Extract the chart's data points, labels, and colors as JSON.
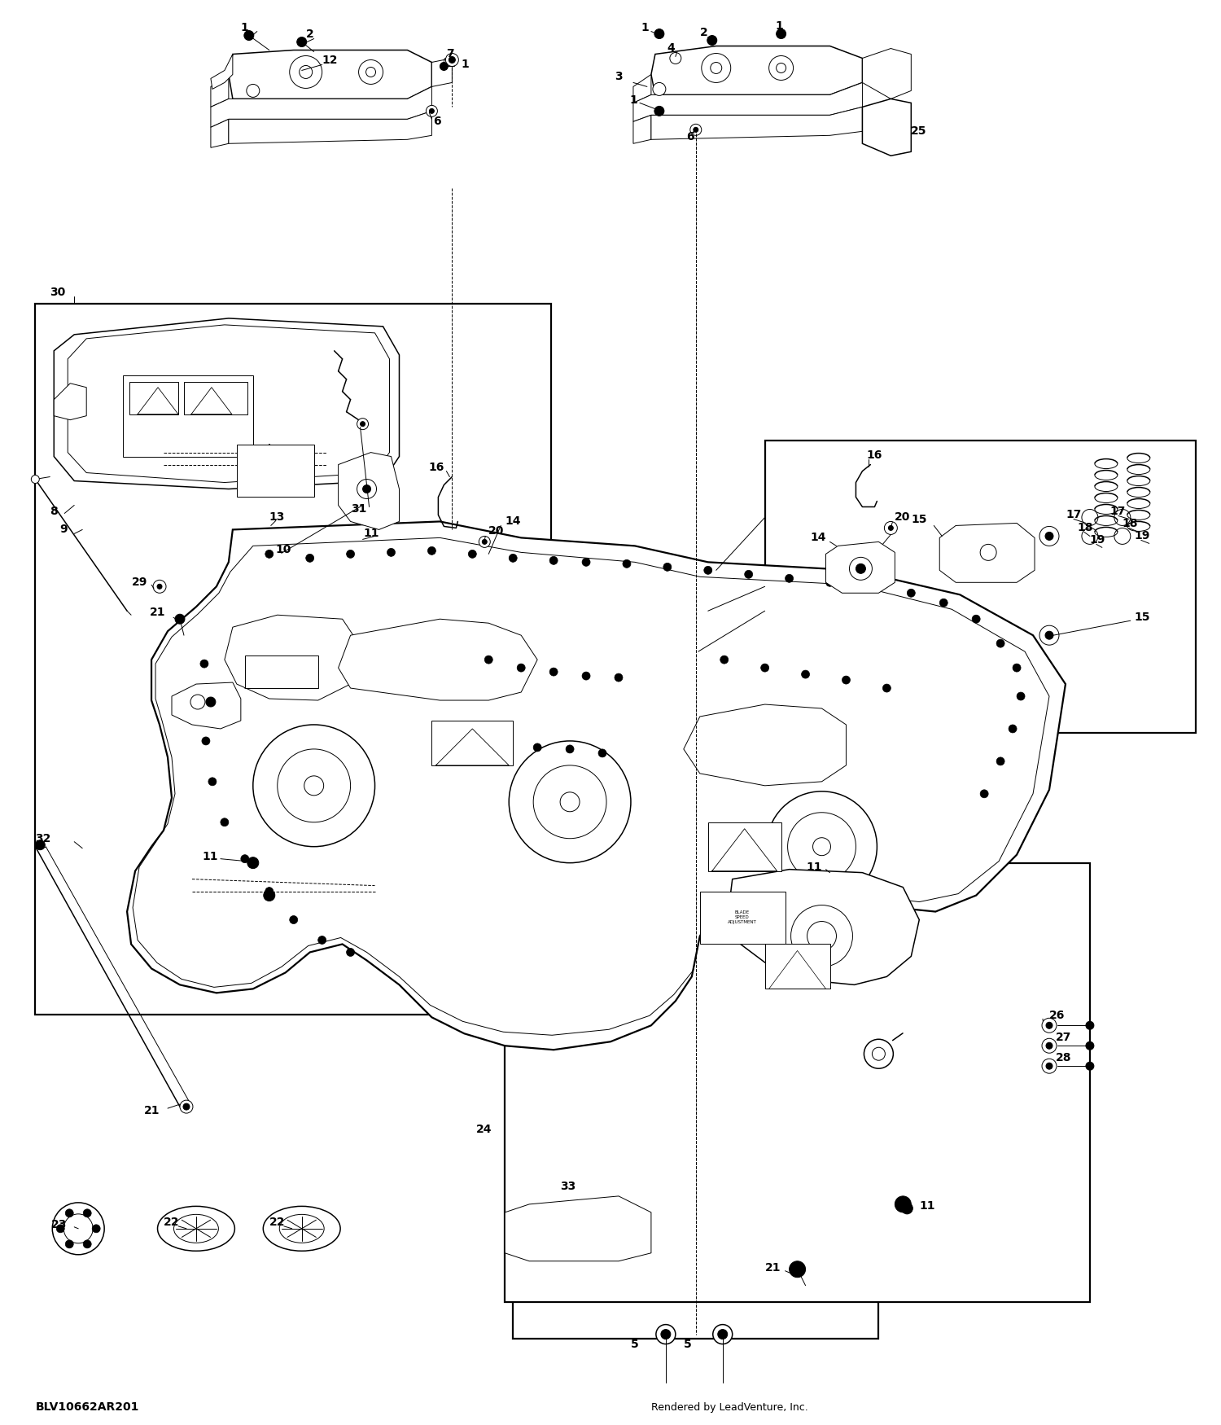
{
  "bg_color": "#ffffff",
  "line_color": "#000000",
  "fig_width": 15.0,
  "fig_height": 17.5,
  "footer_left": "BLV10662AR201",
  "footer_right": "Rendered by LeadVenture, Inc.",
  "watermark": "leadventure",
  "lw_thin": 0.7,
  "lw_med": 1.1,
  "lw_thick": 1.6,
  "label_fs": 10
}
